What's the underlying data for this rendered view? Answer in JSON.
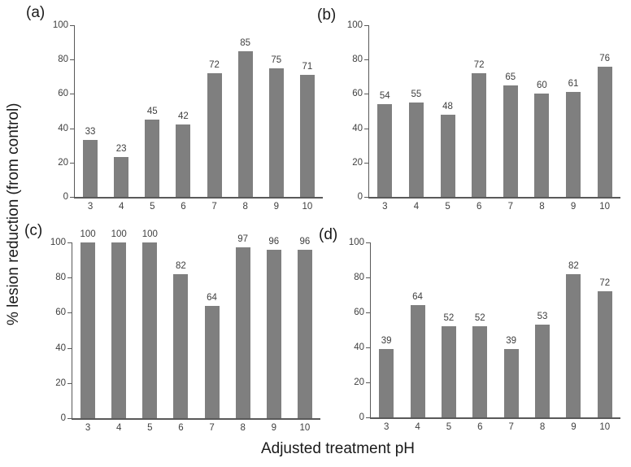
{
  "figure": {
    "y_axis_title": "% lesion reduction (from control)",
    "x_axis_title": "Adjusted treatment pH",
    "colors": {
      "bar": "#7f7f7f",
      "axis": "#595959",
      "tick_text": "#404040",
      "title_text": "#1a1a1a",
      "background": "#ffffff"
    }
  },
  "chart_data": [
    {
      "type": "bar",
      "panel_label": "(a)",
      "categories": [
        "3",
        "4",
        "5",
        "6",
        "7",
        "8",
        "9",
        "10"
      ],
      "values": [
        33,
        23,
        45,
        42,
        72,
        85,
        75,
        71
      ],
      "xlabel": "Adjusted treatment pH",
      "ylabel": "% lesion reduction (from control)",
      "ylim": [
        0,
        100
      ],
      "yticks": [
        0,
        20,
        40,
        60,
        80,
        100
      ],
      "grid": false,
      "legend": false,
      "data_labels": true
    },
    {
      "type": "bar",
      "panel_label": "(b)",
      "categories": [
        "3",
        "4",
        "5",
        "6",
        "7",
        "8",
        "9",
        "10"
      ],
      "values": [
        54,
        55,
        48,
        72,
        65,
        60,
        61,
        76
      ],
      "xlabel": "Adjusted treatment pH",
      "ylabel": "% lesion reduction (from control)",
      "ylim": [
        0,
        100
      ],
      "yticks": [
        0,
        20,
        40,
        60,
        80,
        100
      ],
      "grid": false,
      "legend": false,
      "data_labels": true
    },
    {
      "type": "bar",
      "panel_label": "(c)",
      "categories": [
        "3",
        "4",
        "5",
        "6",
        "7",
        "8",
        "9",
        "10"
      ],
      "values": [
        100,
        100,
        100,
        82,
        64,
        97,
        96,
        96
      ],
      "xlabel": "Adjusted treatment pH",
      "ylabel": "% lesion reduction (from control)",
      "ylim": [
        0,
        100
      ],
      "yticks": [
        0,
        20,
        40,
        60,
        80,
        100
      ],
      "grid": false,
      "legend": false,
      "data_labels": true
    },
    {
      "type": "bar",
      "panel_label": "(d)",
      "categories": [
        "3",
        "4",
        "5",
        "6",
        "7",
        "8",
        "9",
        "10"
      ],
      "values": [
        39,
        64,
        52,
        52,
        39,
        53,
        82,
        72
      ],
      "xlabel": "Adjusted treatment pH",
      "ylabel": "% lesion reduction (from control)",
      "ylim": [
        0,
        100
      ],
      "yticks": [
        0,
        20,
        40,
        60,
        80,
        100
      ],
      "grid": false,
      "legend": false,
      "data_labels": true
    }
  ]
}
